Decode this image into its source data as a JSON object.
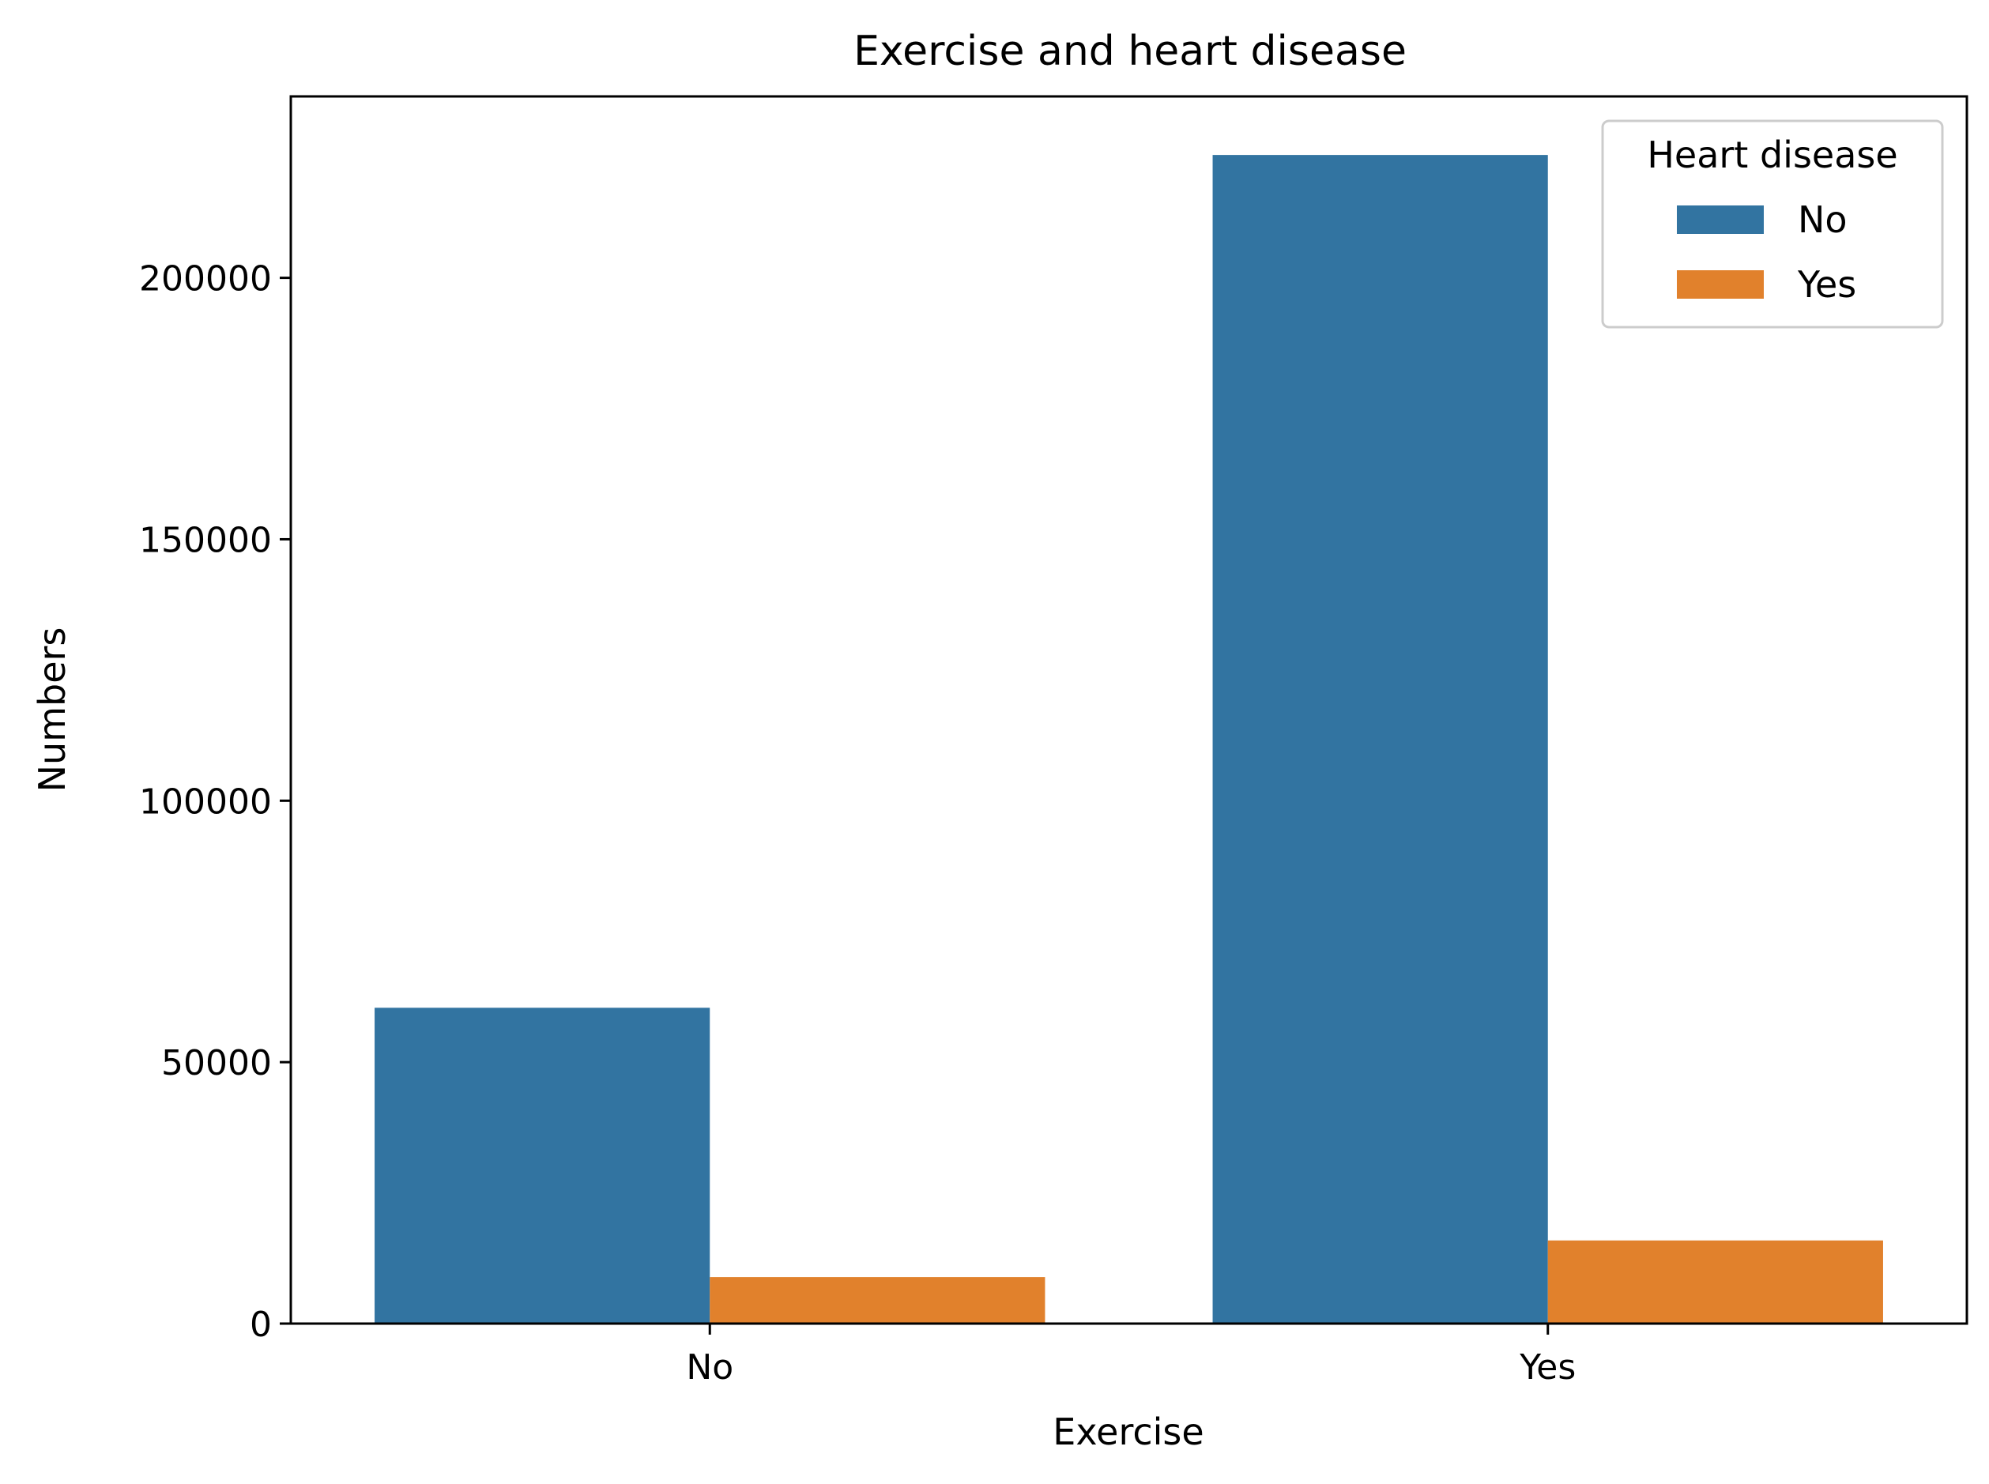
{
  "chart_data": {
    "type": "bar",
    "title": "Exercise and heart disease",
    "xlabel": "Exercise",
    "ylabel": "Numbers",
    "categories": [
      "No",
      "Yes"
    ],
    "series": [
      {
        "name": "No",
        "color": "#3274A1",
        "values": [
          60400,
          223500
        ]
      },
      {
        "name": "Yes",
        "color": "#E1812C",
        "values": [
          8900,
          15900
        ]
      }
    ],
    "ylim": [
      0,
      234700
    ],
    "yticks": [
      0,
      50000,
      100000,
      150000,
      200000
    ],
    "ytick_labels": [
      "0",
      "50000",
      "100000",
      "150000",
      "200000"
    ],
    "legend": {
      "title": "Heart disease",
      "placement": "top-right"
    },
    "grid": false
  }
}
